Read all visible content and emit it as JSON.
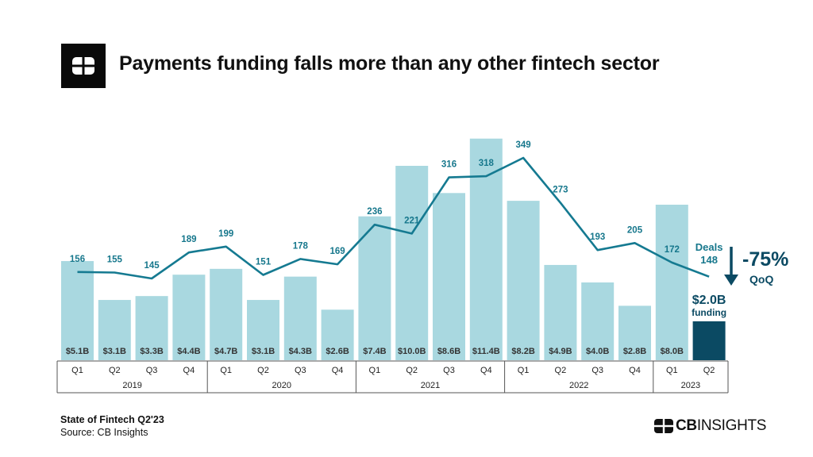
{
  "title": "Payments funding falls more than any other fintech sector",
  "footer": {
    "report": "State of Fintech Q2'23",
    "source": "Source: CB Insights"
  },
  "brand": {
    "bold": "CB",
    "light": "INSIGHTS"
  },
  "logo_icon": "cb-insights-logo-icon",
  "colors": {
    "bar": "#a9d8e0",
    "highlight_bar": "#0b4a63",
    "line": "#157a91",
    "label": "#16778c",
    "annotation": "#0b4a63"
  },
  "chart_data": {
    "type": "bar+line",
    "categories": [
      "Q1",
      "Q2",
      "Q3",
      "Q4",
      "Q1",
      "Q2",
      "Q3",
      "Q4",
      "Q1",
      "Q2",
      "Q3",
      "Q4",
      "Q1",
      "Q2",
      "Q3",
      "Q4",
      "Q1",
      "Q2"
    ],
    "years": [
      {
        "label": "2019",
        "count": 4
      },
      {
        "label": "2020",
        "count": 4
      },
      {
        "label": "2021",
        "count": 4
      },
      {
        "label": "2022",
        "count": 4
      },
      {
        "label": "2023",
        "count": 2
      }
    ],
    "series": [
      {
        "type": "bar",
        "unit": "$B",
        "values": [
          5.1,
          3.1,
          3.3,
          4.4,
          4.7,
          3.1,
          4.3,
          2.6,
          7.4,
          10.0,
          8.6,
          11.4,
          8.2,
          4.9,
          4.0,
          2.8,
          8.0,
          2.0
        ],
        "labels": [
          "$5.1B",
          "$3.1B",
          "$3.3B",
          "$4.4B",
          "$4.7B",
          "$3.1B",
          "$4.3B",
          "$2.6B",
          "$7.4B",
          "$10.0B",
          "$8.6B",
          "$11.4B",
          "$8.2B",
          "$4.9B",
          "$4.0B",
          "$2.8B",
          "$8.0B",
          "$2.0B"
        ]
      },
      {
        "type": "line",
        "name": "Deals",
        "values": [
          156,
          155,
          145,
          189,
          199,
          151,
          178,
          169,
          236,
          221,
          316,
          318,
          349,
          273,
          193,
          205,
          172,
          148
        ]
      }
    ],
    "annotations": {
      "deals_label": "Deals",
      "funding_label": "funding",
      "change": "-75%",
      "change_period": "QoQ"
    },
    "legend": "none",
    "grid": false
  }
}
